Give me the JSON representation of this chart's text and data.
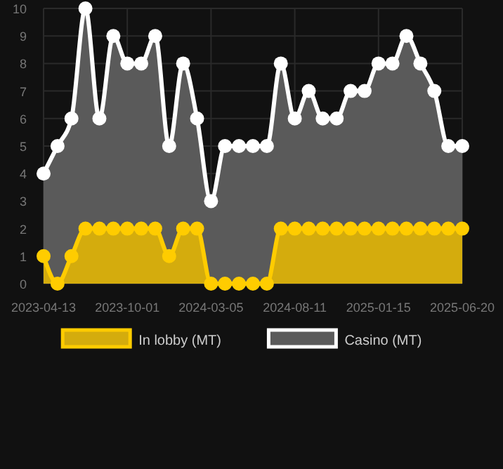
{
  "chart_data": {
    "type": "area",
    "categories": [
      "2023-04-13",
      null,
      null,
      null,
      null,
      null,
      "2023-10-01",
      null,
      null,
      null,
      null,
      null,
      "2024-03-05",
      null,
      null,
      null,
      null,
      null,
      "2024-08-11",
      null,
      null,
      null,
      null,
      null,
      "2025-01-15",
      null,
      null,
      null,
      null,
      null,
      "2025-06-20"
    ],
    "series": [
      {
        "name": "In lobby (MT)",
        "color": "#ffcc00",
        "values": [
          1,
          0,
          1,
          2,
          2,
          2,
          2,
          2,
          2,
          1,
          2,
          2,
          0,
          0,
          0,
          0,
          0,
          2,
          2,
          2,
          2,
          2,
          2,
          2,
          2,
          2,
          2,
          2,
          2,
          2,
          2
        ]
      },
      {
        "name": "Casino (MT)",
        "color": "#ffffff",
        "values": [
          4,
          5,
          6,
          10,
          6,
          9,
          8,
          8,
          9,
          5,
          8,
          6,
          3,
          5,
          5,
          5,
          5,
          8,
          6,
          7,
          6,
          6,
          7,
          7,
          8,
          8,
          9,
          8,
          7,
          5,
          5
        ]
      }
    ],
    "ylim": [
      0,
      10
    ],
    "yticks": [
      0,
      1,
      2,
      3,
      4,
      5,
      6,
      7,
      8,
      9,
      10
    ],
    "grid": true,
    "legend": "bottom",
    "marker": "circle"
  }
}
